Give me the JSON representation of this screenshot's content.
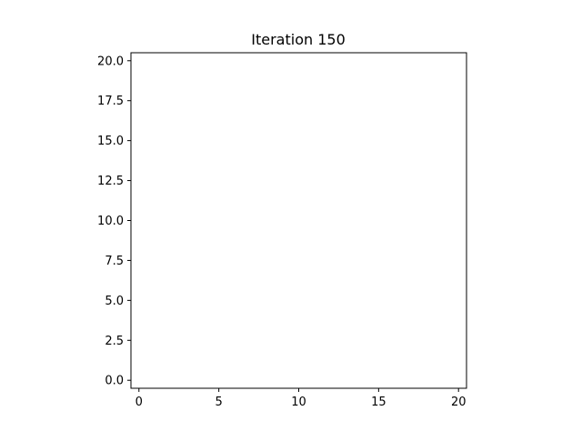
{
  "chart_data": {
    "type": "scatter",
    "title": "Iteration 150",
    "xlabel": "",
    "ylabel": "",
    "xlim": [
      -0.5,
      20.5
    ],
    "ylim": [
      -0.5,
      20.5
    ],
    "xticks": [
      0,
      5,
      10,
      15,
      20
    ],
    "xtick_labels": [
      "0",
      "5",
      "10",
      "15",
      "20"
    ],
    "yticks": [
      0.0,
      2.5,
      5.0,
      7.5,
      10.0,
      12.5,
      15.0,
      17.5,
      20.0
    ],
    "ytick_labels": [
      "0.0",
      "2.5",
      "5.0",
      "7.5",
      "10.0",
      "12.5",
      "15.0",
      "17.5",
      "20.0"
    ],
    "grid": false,
    "series": []
  }
}
